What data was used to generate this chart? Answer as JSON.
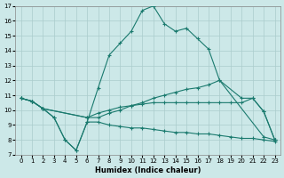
{
  "xlabel": "Humidex (Indice chaleur)",
  "xlim": [
    -0.5,
    23.5
  ],
  "ylim": [
    7,
    17
  ],
  "yticks": [
    7,
    8,
    9,
    10,
    11,
    12,
    13,
    14,
    15,
    16,
    17
  ],
  "xticks": [
    0,
    1,
    2,
    3,
    4,
    5,
    6,
    7,
    8,
    9,
    10,
    11,
    12,
    13,
    14,
    15,
    16,
    17,
    18,
    19,
    20,
    21,
    22,
    23
  ],
  "bg_color": "#cce8e8",
  "line_color": "#1a7a6e",
  "grid_color": "#aacccc",
  "lines": [
    {
      "x": [
        0,
        1,
        2,
        3,
        4,
        5,
        6,
        7,
        8,
        9,
        10,
        11,
        12,
        13,
        14,
        15,
        16,
        17,
        18,
        22,
        23
      ],
      "y": [
        10.8,
        10.6,
        10.1,
        9.5,
        8.0,
        7.3,
        9.2,
        11.5,
        13.7,
        14.5,
        15.3,
        16.7,
        17.0,
        15.8,
        15.3,
        15.5,
        14.8,
        14.1,
        12.0,
        8.2,
        8.0
      ]
    },
    {
      "x": [
        0,
        1,
        2,
        6,
        7,
        8,
        9,
        10,
        11,
        12,
        13,
        14,
        15,
        16,
        17,
        18,
        20,
        21,
        22,
        23
      ],
      "y": [
        10.8,
        10.6,
        10.1,
        9.5,
        9.5,
        9.8,
        10.0,
        10.3,
        10.5,
        10.8,
        11.0,
        11.2,
        11.4,
        11.5,
        11.7,
        12.0,
        10.8,
        10.8,
        9.9,
        8.0
      ]
    },
    {
      "x": [
        0,
        1,
        2,
        6,
        7,
        8,
        9,
        10,
        11,
        12,
        13,
        14,
        15,
        16,
        17,
        18,
        19,
        20,
        21,
        22,
        23
      ],
      "y": [
        10.8,
        10.6,
        10.1,
        9.5,
        9.8,
        10.0,
        10.2,
        10.3,
        10.4,
        10.5,
        10.5,
        10.5,
        10.5,
        10.5,
        10.5,
        10.5,
        10.5,
        10.5,
        10.8,
        9.9,
        8.0
      ]
    },
    {
      "x": [
        0,
        1,
        2,
        3,
        4,
        5,
        6,
        7,
        8,
        9,
        10,
        11,
        12,
        13,
        14,
        15,
        16,
        17,
        18,
        19,
        20,
        21,
        22,
        23
      ],
      "y": [
        10.8,
        10.6,
        10.1,
        9.5,
        8.0,
        7.3,
        9.2,
        9.2,
        9.0,
        8.9,
        8.8,
        8.8,
        8.7,
        8.6,
        8.5,
        8.5,
        8.4,
        8.4,
        8.3,
        8.2,
        8.1,
        8.1,
        8.0,
        7.9
      ]
    }
  ]
}
